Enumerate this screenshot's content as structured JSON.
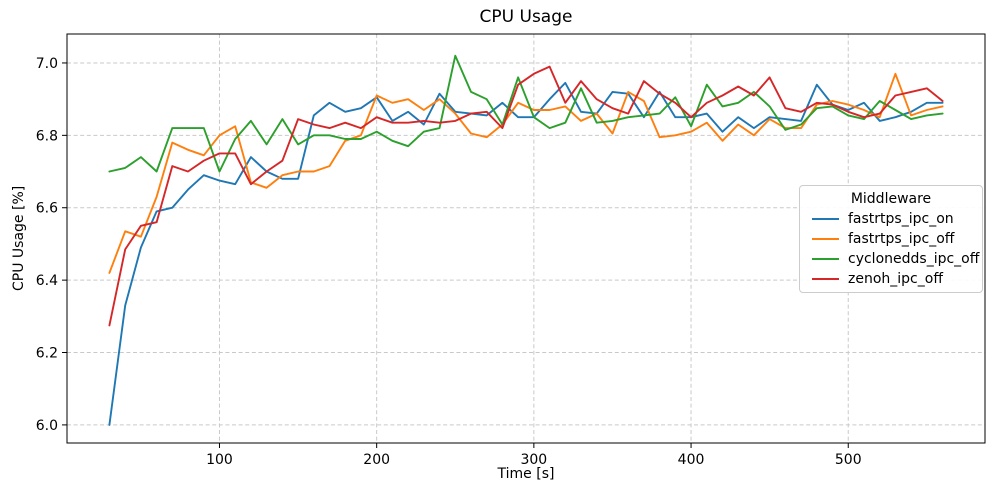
{
  "chart_data": {
    "type": "line",
    "title": "CPU Usage",
    "xlabel": "Time [s]",
    "ylabel": "CPU Usage [%]",
    "grid": true,
    "legend": {
      "title": "Middleware",
      "position": "center-right"
    },
    "xlim": [
      3,
      587
    ],
    "ylim": [
      5.95,
      7.08
    ],
    "xticks": [
      100,
      200,
      300,
      400,
      500
    ],
    "yticks": [
      6.0,
      6.2,
      6.4,
      6.6,
      6.8,
      7.0
    ],
    "ytick_labels": [
      "6.0",
      "6.2",
      "6.4",
      "6.6",
      "6.8",
      "7.0"
    ],
    "x": [
      30,
      40,
      50,
      60,
      70,
      80,
      90,
      100,
      110,
      120,
      130,
      140,
      150,
      160,
      170,
      180,
      190,
      200,
      210,
      220,
      230,
      240,
      250,
      260,
      270,
      280,
      290,
      300,
      310,
      320,
      330,
      340,
      350,
      360,
      370,
      380,
      390,
      400,
      410,
      420,
      430,
      440,
      450,
      460,
      470,
      480,
      490,
      500,
      510,
      520,
      530,
      540,
      550,
      560
    ],
    "series": [
      {
        "name": "fastrtps_ipc_on",
        "color": "#1f77b4",
        "values": [
          6.0,
          6.33,
          6.49,
          6.59,
          6.6,
          6.65,
          6.69,
          6.675,
          6.665,
          6.74,
          6.7,
          6.68,
          6.68,
          6.855,
          6.89,
          6.865,
          6.875,
          6.905,
          6.84,
          6.865,
          6.83,
          6.915,
          6.865,
          6.86,
          6.855,
          6.89,
          6.85,
          6.85,
          6.9,
          6.945,
          6.865,
          6.86,
          6.92,
          6.915,
          6.85,
          6.92,
          6.85,
          6.85,
          6.86,
          6.81,
          6.85,
          6.82,
          6.85,
          6.845,
          6.84,
          6.94,
          6.885,
          6.87,
          6.89,
          6.84,
          6.85,
          6.865,
          6.89,
          6.89
        ]
      },
      {
        "name": "fastrtps_ipc_off",
        "color": "#ff7f0e",
        "values": [
          6.42,
          6.535,
          6.52,
          6.63,
          6.78,
          6.76,
          6.745,
          6.8,
          6.825,
          6.67,
          6.655,
          6.69,
          6.7,
          6.7,
          6.715,
          6.785,
          6.8,
          6.91,
          6.89,
          6.9,
          6.87,
          6.9,
          6.86,
          6.805,
          6.795,
          6.83,
          6.89,
          6.87,
          6.87,
          6.88,
          6.84,
          6.86,
          6.805,
          6.92,
          6.895,
          6.795,
          6.8,
          6.81,
          6.835,
          6.785,
          6.83,
          6.8,
          6.845,
          6.82,
          6.82,
          6.885,
          6.895,
          6.885,
          6.87,
          6.85,
          6.97,
          6.855,
          6.87,
          6.88
        ]
      },
      {
        "name": "cyclonedds_ipc_off",
        "color": "#2ca02c",
        "values": [
          6.7,
          6.71,
          6.74,
          6.7,
          6.82,
          6.82,
          6.82,
          6.7,
          6.79,
          6.84,
          6.775,
          6.845,
          6.775,
          6.8,
          6.8,
          6.79,
          6.79,
          6.81,
          6.785,
          6.77,
          6.81,
          6.82,
          7.02,
          6.92,
          6.9,
          6.83,
          6.96,
          6.85,
          6.82,
          6.835,
          6.93,
          6.835,
          6.84,
          6.85,
          6.855,
          6.86,
          6.905,
          6.825,
          6.94,
          6.88,
          6.89,
          6.92,
          6.88,
          6.815,
          6.83,
          6.875,
          6.88,
          6.855,
          6.845,
          6.895,
          6.87,
          6.845,
          6.855,
          6.86
        ]
      },
      {
        "name": "zenoh_ipc_off",
        "color": "#d62728",
        "values": [
          6.275,
          6.485,
          6.55,
          6.56,
          6.715,
          6.7,
          6.73,
          6.75,
          6.75,
          6.665,
          6.7,
          6.73,
          6.845,
          6.83,
          6.82,
          6.835,
          6.82,
          6.85,
          6.835,
          6.835,
          6.84,
          6.835,
          6.84,
          6.86,
          6.865,
          6.82,
          6.94,
          6.97,
          6.99,
          6.89,
          6.95,
          6.9,
          6.875,
          6.86,
          6.95,
          6.915,
          6.89,
          6.85,
          6.89,
          6.91,
          6.935,
          6.91,
          6.96,
          6.875,
          6.865,
          6.89,
          6.885,
          6.865,
          6.85,
          6.86,
          6.91,
          6.92,
          6.93,
          6.895
        ]
      }
    ]
  }
}
